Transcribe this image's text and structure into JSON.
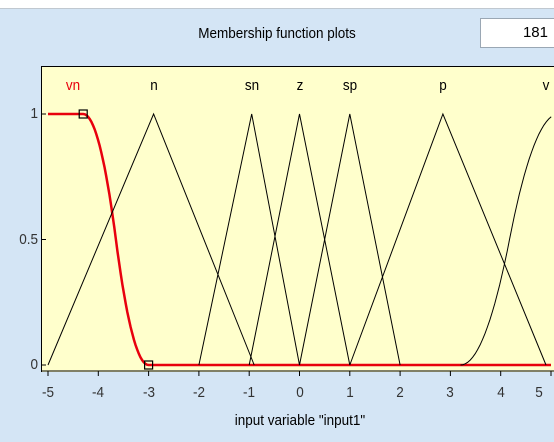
{
  "panel": {
    "title": "Membership function plots",
    "plot_points": "181",
    "axis_title": "input variable \"input1\""
  },
  "colors": {
    "plot_background": "#ffffcc",
    "selected_curve": "#e8000d",
    "curve": "#000000",
    "panel_background": "#d4e5f5"
  },
  "chart_data": {
    "type": "line",
    "title": "",
    "xlabel": "input variable \"input1\"",
    "ylabel": "",
    "xlim": [
      -5,
      5
    ],
    "ylim": [
      0,
      1.2
    ],
    "x_ticks": [
      "-5",
      "-4",
      "-3",
      "-2",
      "-1",
      "0",
      "1",
      "2",
      "3",
      "4",
      "5"
    ],
    "y_ticks": [
      "0",
      "0.5",
      "1"
    ],
    "selected_series": "vn",
    "series": [
      {
        "name": "vn",
        "shape": "z-shaped",
        "points": [
          [
            -5,
            1
          ],
          [
            -4.3,
            1
          ],
          [
            -3.65,
            0.5
          ],
          [
            -3,
            0
          ],
          [
            5,
            0
          ]
        ]
      },
      {
        "name": "n",
        "points": [
          [
            -5,
            0
          ],
          [
            -2.9,
            1
          ],
          [
            -0.9,
            0
          ]
        ]
      },
      {
        "name": "sn",
        "points": [
          [
            -2,
            0
          ],
          [
            -0.95,
            1
          ],
          [
            0,
            0
          ]
        ]
      },
      {
        "name": "z",
        "points": [
          [
            -1,
            0
          ],
          [
            0,
            1
          ],
          [
            1,
            0
          ]
        ]
      },
      {
        "name": "sp",
        "points": [
          [
            0,
            0
          ],
          [
            1,
            1
          ],
          [
            2,
            0
          ]
        ]
      },
      {
        "name": "p",
        "points": [
          [
            1,
            0
          ],
          [
            2.85,
            1
          ],
          [
            4.9,
            0
          ]
        ]
      },
      {
        "name": "vp",
        "shape": "s-shaped",
        "points": [
          [
            3.2,
            0
          ],
          [
            4.2,
            0.5
          ],
          [
            5,
            1
          ]
        ]
      }
    ],
    "label_texts": [
      "vn",
      "n",
      "sn",
      "z",
      "sp",
      "p",
      "v"
    ]
  }
}
